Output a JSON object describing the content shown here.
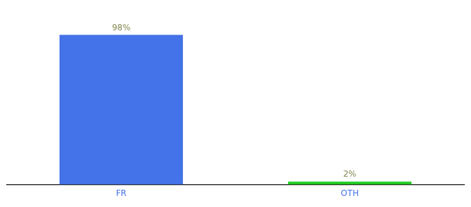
{
  "chart_data": {
    "type": "bar",
    "categories": [
      "FR",
      "OTH"
    ],
    "values": [
      98,
      2
    ],
    "value_labels": [
      "98%",
      "2%"
    ],
    "colors": [
      "#4472e8",
      "#22cc22"
    ],
    "ylim": [
      0,
      110
    ],
    "grid": false,
    "data_labels": true,
    "tick_labels": "x"
  }
}
